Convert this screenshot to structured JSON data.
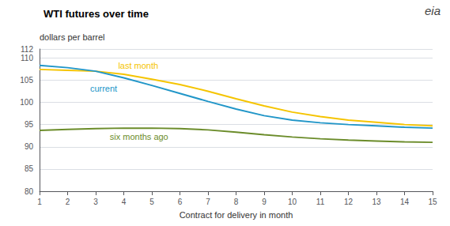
{
  "chart_data": {
    "type": "line",
    "title": "WTI futures over time",
    "xlabel": "Contract for delivery in month",
    "ylabel": "dollars per barrel",
    "x": [
      1,
      2,
      3,
      4,
      5,
      6,
      7,
      8,
      9,
      10,
      11,
      12,
      13,
      14,
      15
    ],
    "series": [
      {
        "name": "last month",
        "color": "#f5c400",
        "values": [
          107.4,
          107.2,
          107.0,
          106.3,
          105.2,
          104.0,
          102.5,
          100.8,
          99.2,
          97.8,
          96.8,
          96.0,
          95.5,
          95.0,
          94.7
        ]
      },
      {
        "name": "current",
        "color": "#2196c8",
        "values": [
          108.3,
          107.8,
          107.0,
          105.5,
          103.8,
          102.0,
          100.2,
          98.5,
          97.0,
          96.0,
          95.4,
          95.0,
          94.7,
          94.4,
          94.2
        ]
      },
      {
        "name": "six months ago",
        "color": "#6b8c2a",
        "values": [
          93.7,
          93.9,
          94.1,
          94.2,
          94.2,
          94.1,
          93.8,
          93.3,
          92.7,
          92.2,
          91.8,
          91.5,
          91.3,
          91.1,
          91.0
        ]
      }
    ],
    "annotations": [
      {
        "text": "current",
        "x": 2.8,
        "y": 103.2,
        "color": "#2196c8"
      },
      {
        "text": "last month",
        "x": 3.8,
        "y": 108.2,
        "color": "#f5c400"
      },
      {
        "text": "six months ago",
        "x": 3.5,
        "y": 92.2,
        "color": "#6b8c2a"
      },
      {
        "text": "eia"
      }
    ],
    "xlim": [
      1,
      15
    ],
    "xticks": [
      1,
      2,
      3,
      4,
      5,
      6,
      7,
      8,
      9,
      10,
      11,
      12,
      13,
      14,
      15
    ],
    "ylim": [
      80,
      112
    ],
    "yticks": [
      80,
      85,
      90,
      95,
      100,
      105,
      110
    ],
    "grid": true
  }
}
